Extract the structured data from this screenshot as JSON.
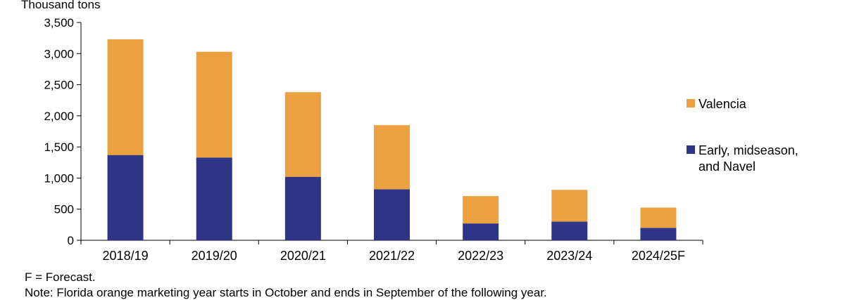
{
  "chart_data": {
    "type": "bar",
    "stacked": true,
    "ylabel": "Thousand tons",
    "ylim": [
      0,
      3500
    ],
    "yticks": [
      0,
      500,
      1000,
      1500,
      2000,
      2500,
      3000,
      3500
    ],
    "ytick_labels": [
      "0",
      "500",
      "1,000",
      "1,500",
      "2,000",
      "2,500",
      "3,000",
      "3,500"
    ],
    "categories": [
      "2018/19",
      "2019/20",
      "2020/21",
      "2021/22",
      "2022/23",
      "2023/24",
      "2024/25F"
    ],
    "series": [
      {
        "name": "Early, midseason, and Navel",
        "color": "#2e3586",
        "values": [
          1370,
          1330,
          1020,
          820,
          270,
          300,
          200
        ]
      },
      {
        "name": "Valencia",
        "color": "#eba13f",
        "values": [
          1860,
          1700,
          1360,
          1030,
          440,
          510,
          325
        ]
      }
    ],
    "legend": {
      "placement": "right",
      "order": [
        "Valencia",
        "Early, midseason, and Navel"
      ]
    },
    "grid": false
  },
  "notes": {
    "forecast": "F = Forecast.",
    "note": "Note: Florida orange marketing year starts in October and ends in September of the following year."
  }
}
